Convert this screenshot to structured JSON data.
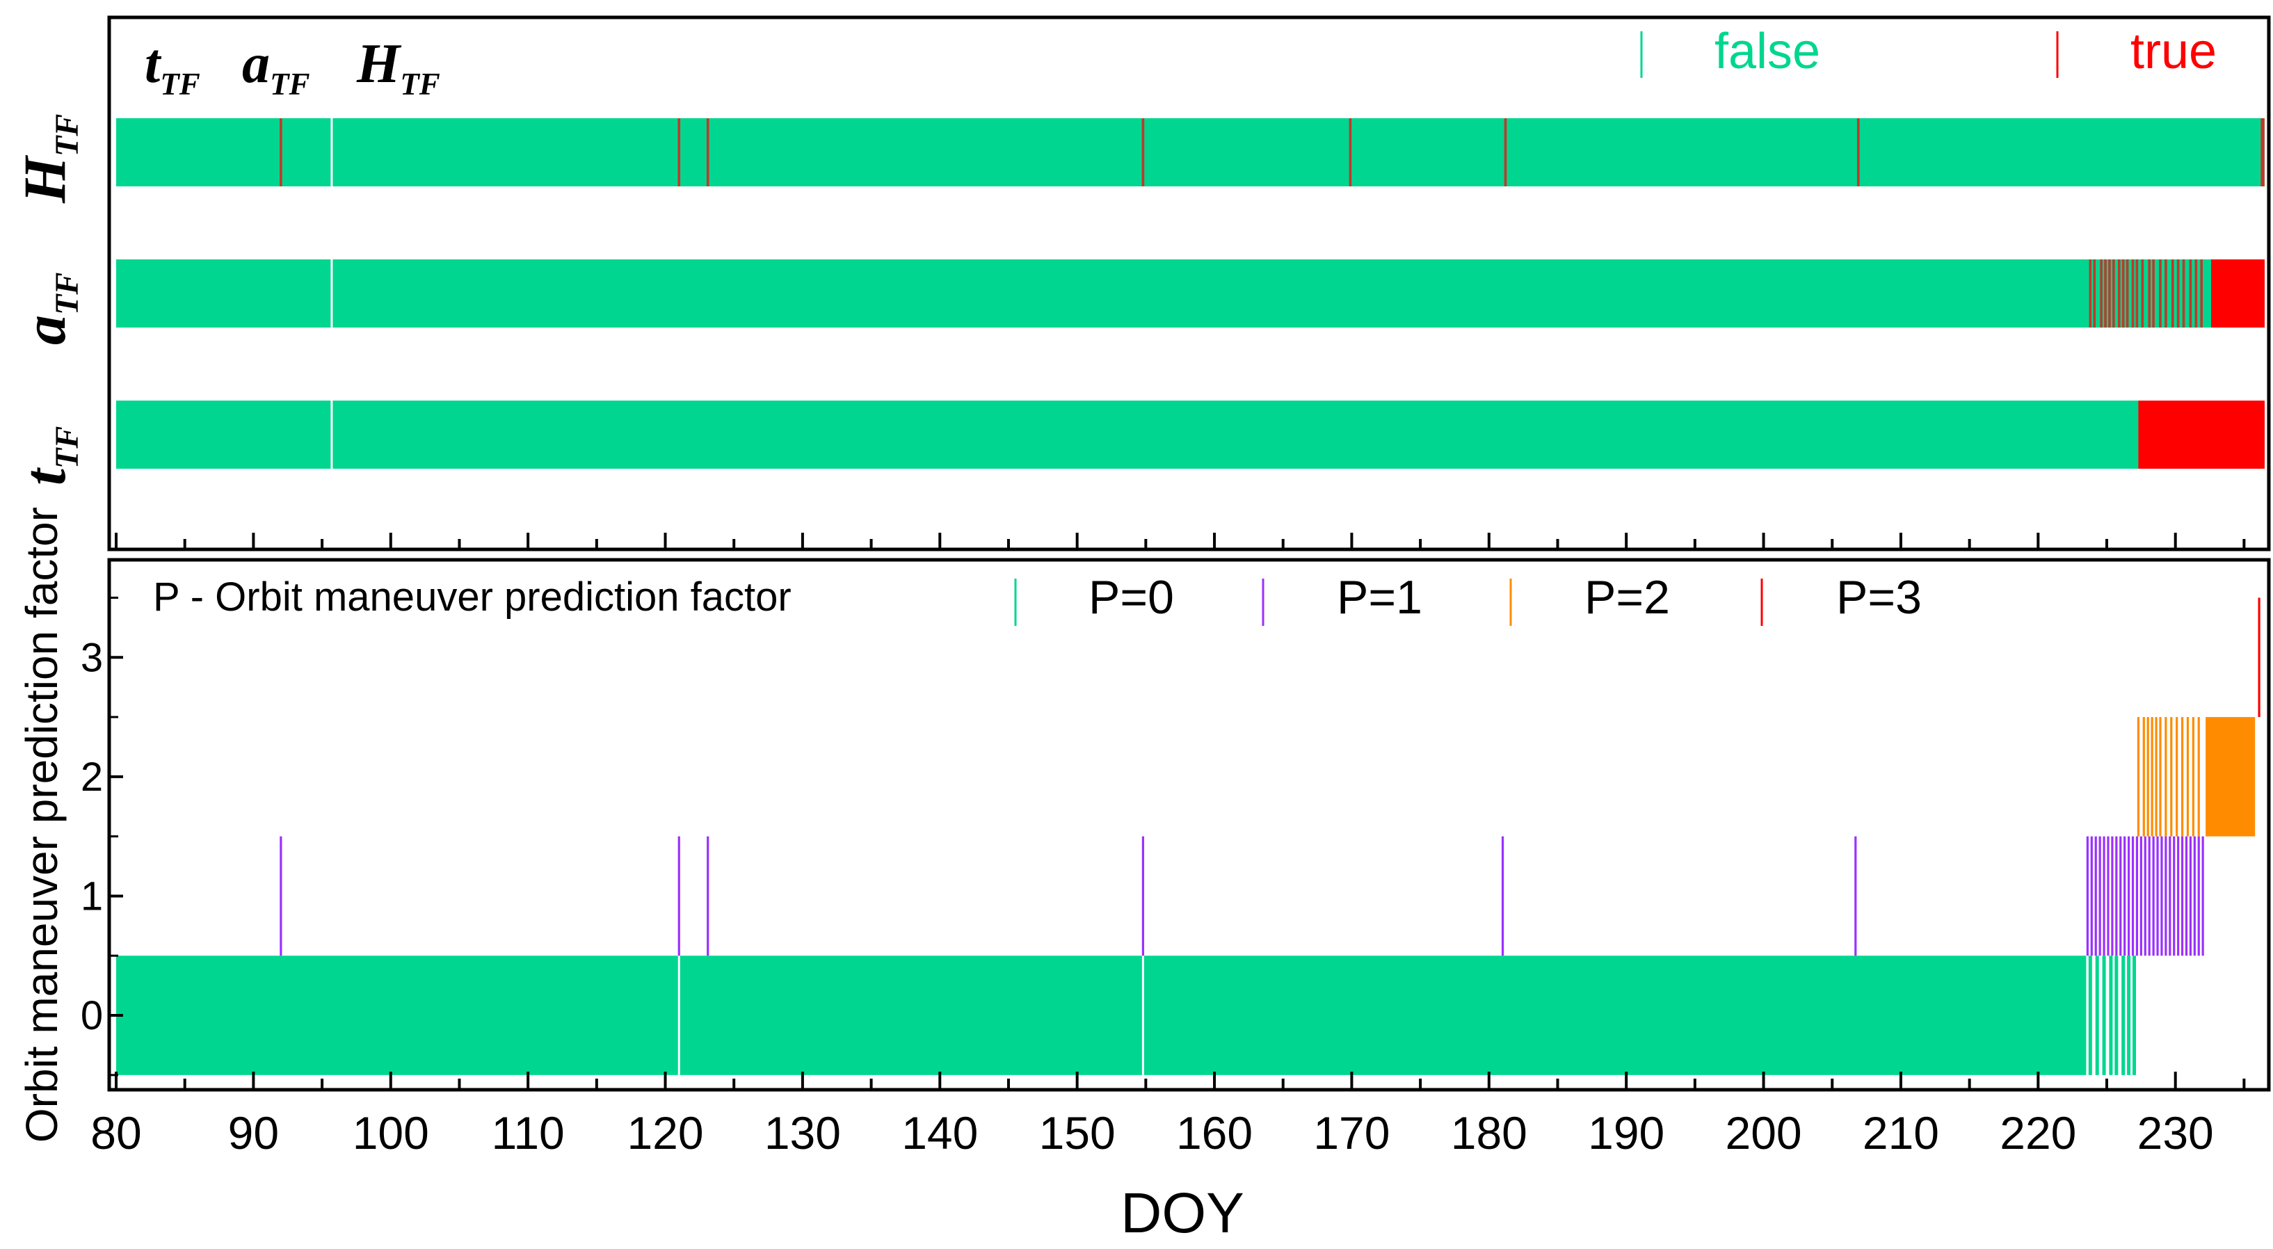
{
  "chart_data": [
    {
      "type": "event-strip",
      "title": "",
      "row_labels": [
        {
          "main": "H",
          "sub": "TF"
        },
        {
          "main": "a",
          "sub": "TF"
        },
        {
          "main": "t",
          "sub": "TF"
        }
      ],
      "header_labels": [
        {
          "main": "t",
          "sub": "TF"
        },
        {
          "main": "a",
          "sub": "TF"
        },
        {
          "main": "H",
          "sub": "TF"
        }
      ],
      "legend": [
        {
          "label": "false",
          "color": "#00D68F"
        },
        {
          "label": "true",
          "color": "#FF0000"
        }
      ],
      "x_range": [
        80,
        236.5
      ],
      "series": [
        {
          "name": "H_TF",
          "true_events": [
            92,
            121,
            123.1,
            154.8,
            169.9,
            181.2,
            206.9,
            236.3,
            236.4
          ],
          "true_ranges": []
        },
        {
          "name": "a_TF",
          "true_events": [
            223.8,
            224.1,
            224.6,
            224.9,
            225.2,
            225.5,
            225.9,
            226.2,
            226.5,
            226.9,
            227.2,
            227.6,
            228.1,
            228.4,
            228.9,
            229.3,
            229.8,
            230.2,
            230.6,
            231.1,
            231.5,
            231.9
          ],
          "true_ranges": [
            [
              232.6,
              236.5
            ]
          ]
        },
        {
          "name": "t_TF",
          "true_events": [],
          "true_ranges": [
            [
              227.3,
              236.5
            ]
          ]
        }
      ],
      "gaps": [
        95.7
      ]
    },
    {
      "type": "event-strip",
      "ylabel": "Orbit maneuver prediction factor",
      "xlabel": "DOY",
      "legend_title": "P - Orbit maneuver prediction factor",
      "legend": [
        {
          "label": "P=0",
          "color": "#00D68F"
        },
        {
          "label": "P=1",
          "color": "#9B30FF"
        },
        {
          "label": "P=2",
          "color": "#FF8C00"
        },
        {
          "label": "P=3",
          "color": "#FF0000"
        }
      ],
      "xlim": [
        80,
        236.5
      ],
      "ylim": [
        -0.6,
        3.8
      ],
      "xticks": [
        "80",
        "90",
        "100",
        "110",
        "120",
        "130",
        "140",
        "150",
        "160",
        "170",
        "180",
        "190",
        "200",
        "210",
        "220",
        "230"
      ],
      "yticks": [
        "0",
        "1",
        "2",
        "3"
      ],
      "series": [
        {
          "name": "P=0",
          "level": 0,
          "ranges": [
            [
              80,
              223.5
            ]
          ],
          "events": [
            223.8,
            224.3,
            224.8,
            225.3,
            225.7,
            226.2,
            226.6,
            227.0
          ],
          "white_gaps": [
            121,
            154.8
          ]
        },
        {
          "name": "P=1",
          "level": 1,
          "ranges": [],
          "events": [
            92,
            121,
            123.1,
            154.8,
            181,
            206.7,
            223.6,
            223.9,
            224.2,
            224.5,
            224.8,
            225.1,
            225.4,
            225.7,
            226.0,
            226.3,
            226.6,
            226.9,
            227.2,
            227.5,
            227.8,
            228.1,
            228.4,
            228.7,
            229.0,
            229.3,
            229.6,
            229.9,
            230.2,
            230.5,
            230.8,
            231.1,
            231.4,
            231.7,
            232.0
          ]
        },
        {
          "name": "P=2",
          "level": 2,
          "ranges": [
            [
              232.2,
              235.8
            ]
          ],
          "events": [
            227.3,
            227.7,
            228.0,
            228.3,
            228.6,
            228.9,
            229.3,
            229.7,
            230.1,
            230.5,
            230.9,
            231.3,
            231.7
          ]
        },
        {
          "name": "P=3",
          "level": 3,
          "ranges": [],
          "events": [
            236.1
          ]
        }
      ]
    }
  ]
}
